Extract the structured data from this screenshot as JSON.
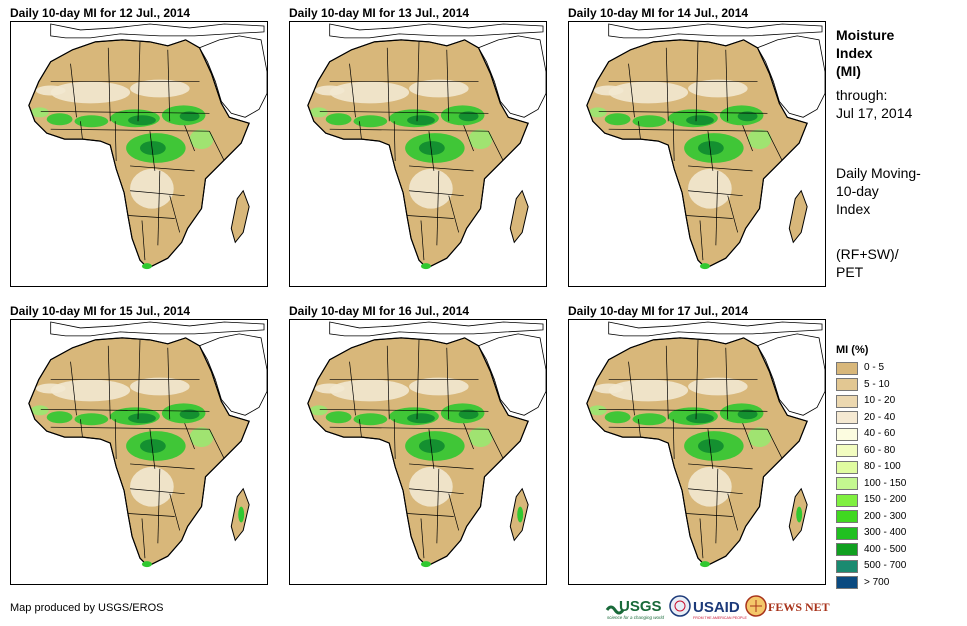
{
  "panels": [
    {
      "title": "Daily 10-day MI for 12 Jul., 2014"
    },
    {
      "title": "Daily 10-day MI for 13 Jul., 2014"
    },
    {
      "title": "Daily 10-day MI for 14 Jul., 2014"
    },
    {
      "title": "Daily 10-day MI for 15 Jul., 2014"
    },
    {
      "title": "Daily 10-day MI for 16 Jul., 2014"
    },
    {
      "title": "Daily 10-day MI for 17 Jul., 2014"
    }
  ],
  "side": {
    "title_line1": "Moisture",
    "title_line2": "Index",
    "title_line3": "(MI)",
    "through_label": "through:",
    "through_date": "Jul 17, 2014",
    "desc_line1": "Daily Moving-",
    "desc_line2": "10-day",
    "desc_line3": "Index",
    "formula_line1": "(RF+SW)/",
    "formula_line2": "PET"
  },
  "legend": {
    "title": "MI (%)",
    "items": [
      {
        "label": "0 - 5",
        "color": "#d8b77a"
      },
      {
        "label": "5 - 10",
        "color": "#e2c792"
      },
      {
        "label": "10 - 20",
        "color": "#ecd8b0"
      },
      {
        "label": "20 - 40",
        "color": "#f5e9d2"
      },
      {
        "label": "40 - 60",
        "color": "#fcfce0"
      },
      {
        "label": "60 - 80",
        "color": "#f2fcc0"
      },
      {
        "label": "80 - 100",
        "color": "#e0fca0"
      },
      {
        "label": "100 - 150",
        "color": "#c4f890"
      },
      {
        "label": "150 - 200",
        "color": "#80f040"
      },
      {
        "label": "200 - 300",
        "color": "#40d820"
      },
      {
        "label": "300 - 400",
        "color": "#20c020"
      },
      {
        "label": "400 - 500",
        "color": "#10a020"
      },
      {
        "label": "500 - 700",
        "color": "#1a8a70"
      },
      {
        "label": "> 700",
        "color": "#0a4a80"
      }
    ]
  },
  "map_colors": {
    "dry": "#d8b77a",
    "light": "#f2e8d0",
    "wet": "#30c830",
    "mid": "#9ae870",
    "very_wet": "#108a30",
    "sea": "#ffffff"
  },
  "credit": "Map produced by USGS/EROS",
  "logos": {
    "usgs": "USGS",
    "usgs_tag": "science for a changing world",
    "usaid": "USAID",
    "usaid_tag": "FROM THE AMERICAN PEOPLE",
    "fews": "FEWS NET"
  }
}
